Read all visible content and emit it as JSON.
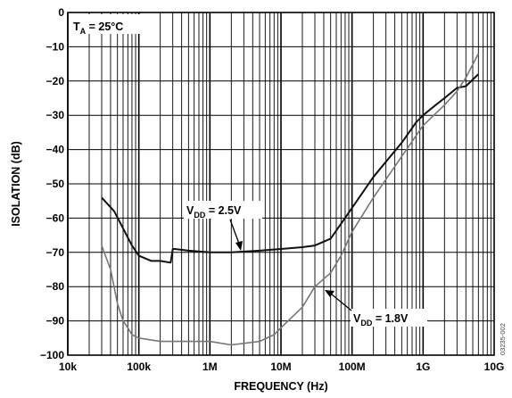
{
  "chart_data": {
    "type": "line",
    "xlabel": "FREQUENCY (Hz)",
    "ylabel": "ISOLATION (dB)",
    "xscale": "log",
    "xlim": [
      10000,
      10000000000
    ],
    "ylim": [
      -100,
      0
    ],
    "grid": true,
    "x_tick_labels": [
      "10k",
      "100k",
      "1M",
      "10M",
      "100M",
      "1G",
      "10G"
    ],
    "y_tick_labels": [
      "0",
      "−10",
      "−20",
      "−30",
      "−40",
      "−50",
      "−60",
      "−70",
      "−80",
      "−90",
      "−100"
    ],
    "annotations": {
      "temperature": {
        "main": "T",
        "sub": "A",
        "rest": " = 25°C"
      },
      "series_a_label": {
        "main": "V",
        "sub": "DD",
        "rest": " = 2.5V"
      },
      "series_b_label": {
        "main": "V",
        "sub": "DD",
        "rest": " = 1.8V"
      }
    },
    "figure_id": "03235-002",
    "series": [
      {
        "name": "VDD = 2.5V",
        "color": "#111111",
        "x": [
          30000,
          45000,
          60000,
          80000,
          100000,
          150000,
          200000,
          280000,
          300000,
          320000,
          500000,
          1000000,
          2000000,
          5000000,
          10000000,
          20000000,
          30000000,
          50000000,
          100000000,
          200000000,
          500000000,
          800000000,
          1000000000,
          1500000000,
          2000000000,
          3000000000,
          4000000000,
          6000000000
        ],
        "y": [
          -54,
          -58,
          -63,
          -68,
          -71,
          -72.5,
          -72.5,
          -73,
          -69,
          -69,
          -69.5,
          -70,
          -70,
          -69.5,
          -69,
          -68.5,
          -68,
          -66,
          -57,
          -48,
          -38,
          -32,
          -30,
          -27,
          -25,
          -22,
          -21.5,
          -18
        ]
      },
      {
        "name": "VDD = 1.8V",
        "color": "#777777",
        "x": [
          30000,
          40000,
          50000,
          60000,
          70000,
          80000,
          100000,
          200000,
          500000,
          1000000,
          2000000,
          5000000,
          8000000,
          10000000,
          20000000,
          30000000,
          50000000,
          70000000,
          100000000,
          200000000,
          500000000,
          1000000000,
          2000000000,
          3000000000,
          4000000000,
          6000000000
        ],
        "y": [
          -68,
          -75,
          -85,
          -90,
          -92,
          -94,
          -95,
          -96,
          -96,
          -96,
          -97,
          -96,
          -94,
          -92,
          -86,
          -80,
          -76,
          -71,
          -64,
          -54,
          -42,
          -33,
          -27,
          -23,
          -19,
          -12
        ]
      }
    ]
  }
}
